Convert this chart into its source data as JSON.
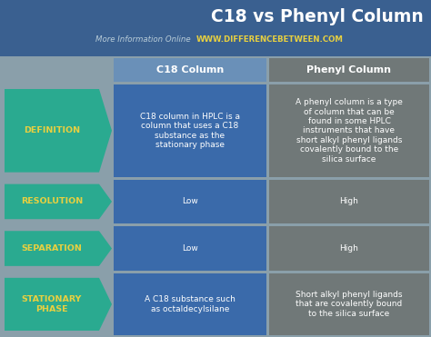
{
  "title": "C18 vs Phenyl Column",
  "subtitle_normal": "More Information Online",
  "subtitle_bold": "WWW.DIFFERENCEBETWEEN.COM",
  "col1_header": "C18 Column",
  "col2_header": "Phenyl Column",
  "rows": [
    {
      "label": "DEFINITION",
      "c18": "C18 column in HPLC is a\ncolumn that uses a C18\nsubstance as the\nstationary phase",
      "phenyl": "A phenyl column is a type\nof column that can be\nfound in some HPLC\ninstruments that have\nshort alkyl phenyl ligands\ncovalently bound to the\nsilica surface"
    },
    {
      "label": "RESOLUTION",
      "c18": "Low",
      "phenyl": "High"
    },
    {
      "label": "SEPARATION",
      "c18": "Low",
      "phenyl": "High"
    },
    {
      "label": "STATIONARY\nPHASE",
      "c18": "A C18 substance such\nas octaldecylsilane",
      "phenyl": "Short alkyl phenyl ligands\nthat are covalently bound\nto the silica surface"
    }
  ],
  "bg_color": "#8a9faa",
  "header_bg": "#3a6090",
  "teal_color": "#2aaa90",
  "c18_cell_color": "#3a6aaa",
  "phenyl_cell_color": "#707878",
  "col_header_c18_bg": "#6a90b8",
  "col_header_phenyl_bg": "#707878",
  "label_text_color": "#e8d040",
  "cell_text_color": "#ffffff",
  "subtitle_normal_color": "#b8ccd8",
  "subtitle_bold_color": "#e8d040",
  "title_color": "#ffffff"
}
